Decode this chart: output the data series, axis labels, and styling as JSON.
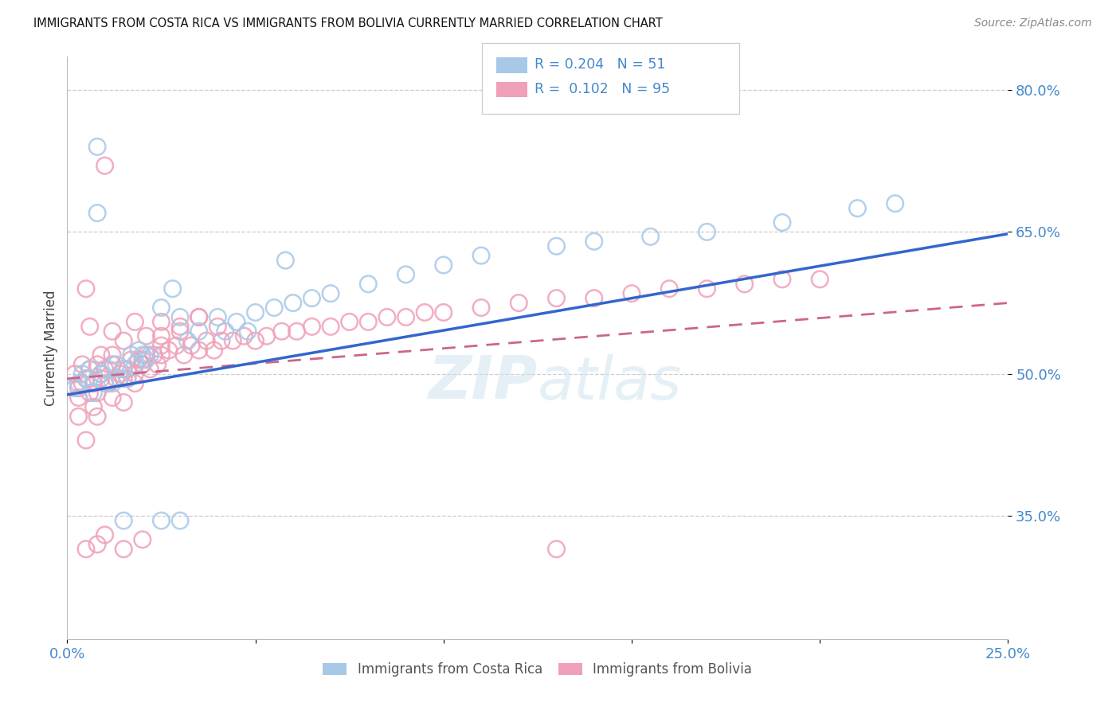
{
  "title": "IMMIGRANTS FROM COSTA RICA VS IMMIGRANTS FROM BOLIVIA CURRENTLY MARRIED CORRELATION CHART",
  "source": "Source: ZipAtlas.com",
  "ylabel": "Currently Married",
  "x_min": 0.0,
  "x_max": 0.25,
  "y_min": 0.22,
  "y_max": 0.835,
  "y_ticks": [
    0.35,
    0.5,
    0.65,
    0.8
  ],
  "y_tick_labels": [
    "35.0%",
    "50.0%",
    "65.0%",
    "80.0%"
  ],
  "x_tick_positions": [
    0.0,
    0.05,
    0.1,
    0.15,
    0.2,
    0.25
  ],
  "x_tick_labels": [
    "0.0%",
    "",
    "",
    "",
    "",
    "25.0%"
  ],
  "costa_rica_color": "#a8c8e8",
  "bolivia_color": "#f0a0b8",
  "trend_blue_color": "#3366cc",
  "trend_pink_color": "#cc6688",
  "background_color": "#ffffff",
  "grid_color": "#cccccc",
  "axis_label_color": "#4488cc",
  "watermark": "ZIPatlas",
  "legend_R1": "R = 0.204",
  "legend_N1": "N = 51",
  "legend_R2": "R =  0.102",
  "legend_N2": "N = 95",
  "legend_color": "#4488cc",
  "legend_text_color": "#222222",
  "cr_label": "Immigrants from Costa Rica",
  "bo_label": "Immigrants from Bolivia",
  "cr_x": [
    0.002,
    0.003,
    0.004,
    0.005,
    0.006,
    0.007,
    0.008,
    0.009,
    0.01,
    0.011,
    0.012,
    0.013,
    0.014,
    0.015,
    0.016,
    0.017,
    0.018,
    0.019,
    0.02,
    0.021,
    0.022,
    0.025,
    0.028,
    0.03,
    0.032,
    0.035,
    0.04,
    0.042,
    0.045,
    0.048,
    0.05,
    0.055,
    0.058,
    0.06,
    0.065,
    0.07,
    0.08,
    0.09,
    0.1,
    0.11,
    0.13,
    0.14,
    0.155,
    0.17,
    0.19,
    0.21,
    0.22,
    0.03,
    0.025,
    0.015,
    0.008
  ],
  "cr_y": [
    0.485,
    0.49,
    0.5,
    0.495,
    0.505,
    0.48,
    0.74,
    0.5,
    0.49,
    0.505,
    0.49,
    0.51,
    0.495,
    0.505,
    0.495,
    0.52,
    0.51,
    0.525,
    0.52,
    0.515,
    0.52,
    0.57,
    0.59,
    0.56,
    0.535,
    0.545,
    0.56,
    0.545,
    0.555,
    0.545,
    0.565,
    0.57,
    0.62,
    0.575,
    0.58,
    0.585,
    0.595,
    0.605,
    0.615,
    0.625,
    0.635,
    0.64,
    0.645,
    0.65,
    0.66,
    0.675,
    0.68,
    0.345,
    0.345,
    0.345,
    0.67
  ],
  "bo_x": [
    0.002,
    0.003,
    0.004,
    0.005,
    0.006,
    0.007,
    0.008,
    0.009,
    0.01,
    0.011,
    0.012,
    0.013,
    0.014,
    0.015,
    0.016,
    0.016,
    0.017,
    0.018,
    0.019,
    0.02,
    0.021,
    0.022,
    0.023,
    0.024,
    0.025,
    0.027,
    0.029,
    0.031,
    0.033,
    0.035,
    0.037,
    0.039,
    0.041,
    0.044,
    0.047,
    0.05,
    0.053,
    0.057,
    0.061,
    0.065,
    0.07,
    0.075,
    0.08,
    0.085,
    0.09,
    0.095,
    0.1,
    0.11,
    0.12,
    0.13,
    0.14,
    0.15,
    0.16,
    0.17,
    0.18,
    0.19,
    0.2,
    0.01,
    0.005,
    0.003,
    0.004,
    0.006,
    0.008,
    0.009,
    0.007,
    0.012,
    0.015,
    0.018,
    0.021,
    0.025,
    0.03,
    0.035,
    0.04,
    0.003,
    0.006,
    0.009,
    0.012,
    0.015,
    0.018,
    0.02,
    0.025,
    0.03,
    0.035,
    0.005,
    0.008,
    0.012,
    0.015,
    0.02,
    0.025,
    0.13,
    0.005,
    0.008,
    0.01,
    0.015,
    0.02
  ],
  "bo_y": [
    0.5,
    0.485,
    0.49,
    0.495,
    0.505,
    0.49,
    0.51,
    0.495,
    0.505,
    0.49,
    0.51,
    0.495,
    0.5,
    0.505,
    0.495,
    0.505,
    0.515,
    0.5,
    0.515,
    0.51,
    0.52,
    0.505,
    0.52,
    0.51,
    0.52,
    0.525,
    0.53,
    0.52,
    0.53,
    0.525,
    0.535,
    0.525,
    0.535,
    0.535,
    0.54,
    0.535,
    0.54,
    0.545,
    0.545,
    0.55,
    0.55,
    0.555,
    0.555,
    0.56,
    0.56,
    0.565,
    0.565,
    0.57,
    0.575,
    0.58,
    0.58,
    0.585,
    0.59,
    0.59,
    0.595,
    0.6,
    0.6,
    0.72,
    0.59,
    0.475,
    0.51,
    0.55,
    0.48,
    0.52,
    0.465,
    0.545,
    0.535,
    0.555,
    0.54,
    0.555,
    0.545,
    0.56,
    0.55,
    0.455,
    0.48,
    0.5,
    0.52,
    0.47,
    0.49,
    0.51,
    0.53,
    0.55,
    0.56,
    0.43,
    0.455,
    0.475,
    0.495,
    0.515,
    0.54,
    0.315,
    0.315,
    0.32,
    0.33,
    0.315,
    0.325
  ]
}
